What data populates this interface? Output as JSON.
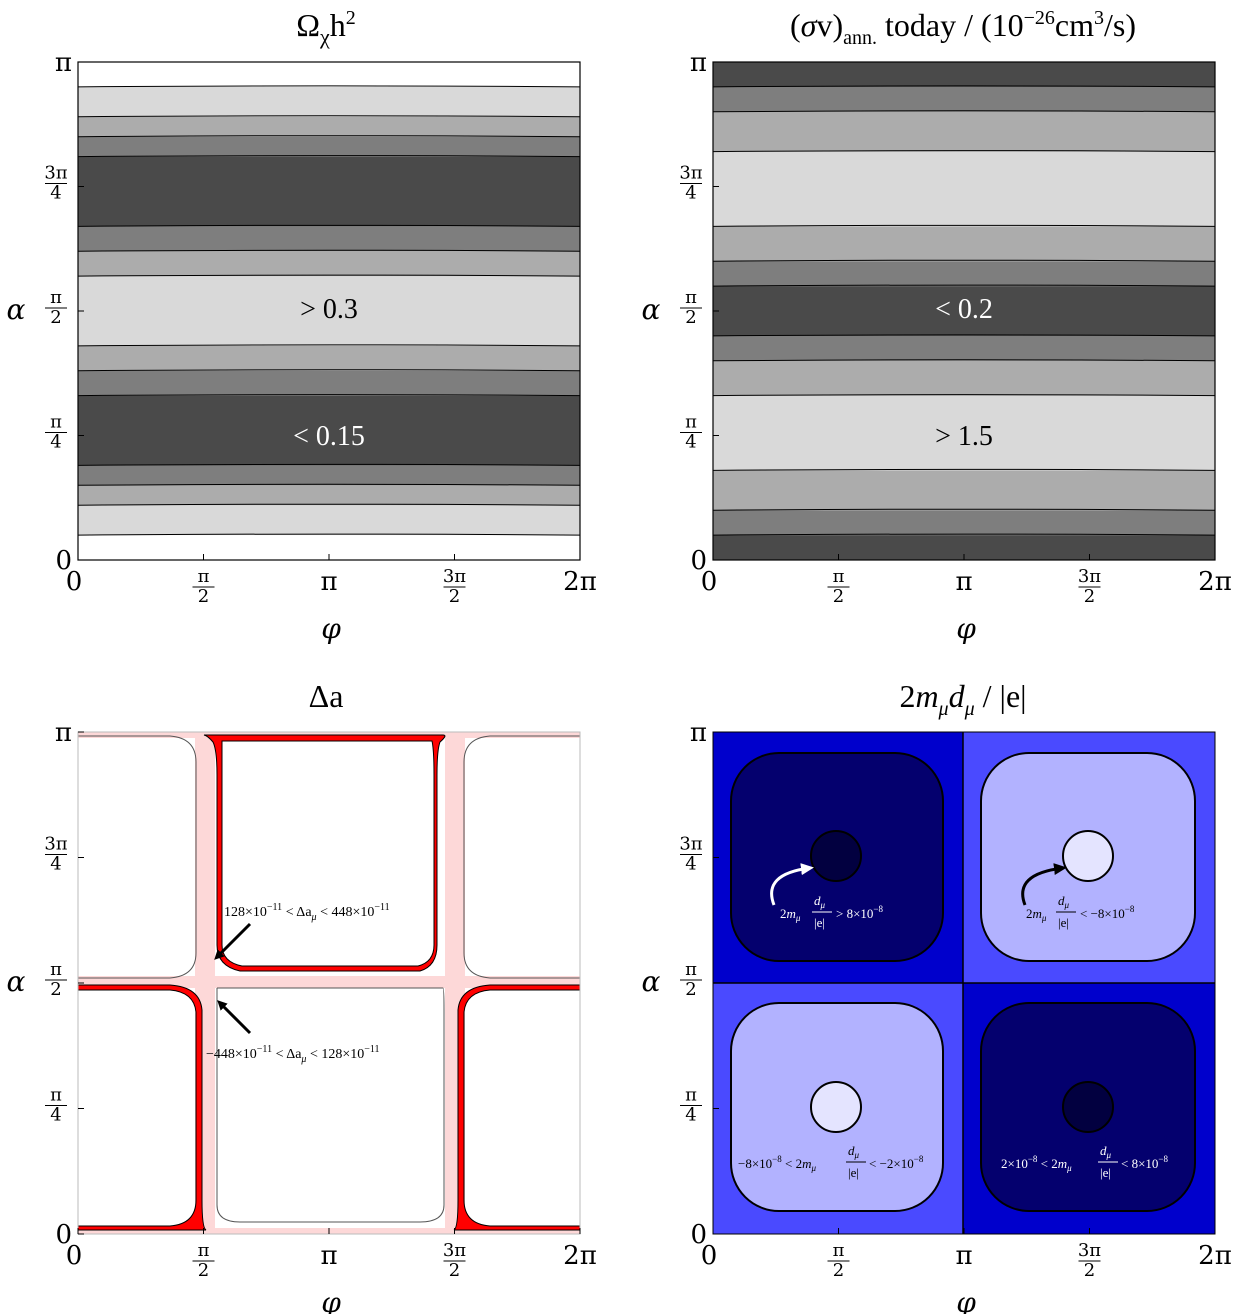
{
  "axes": {
    "alpha_label": "α",
    "phi_label": "φ",
    "alpha_ticks": [
      "0",
      "π/4",
      "π/2",
      "3π/4",
      "π"
    ],
    "phi_ticks": [
      "0",
      "π/2",
      "π",
      "3π/2",
      "2π"
    ]
  },
  "colors": {
    "gray_dark": "#4a4a4a",
    "gray_mid": "#7e7e7e",
    "gray_light": "#acacac",
    "gray_lighter": "#d9d9d9",
    "red": "#ff0000",
    "pink": "#fdd8d8",
    "blue_deep": "#0000cc",
    "blue_mid": "#4a4aff",
    "blue_navy": "#04006e",
    "blue_pale": "#b2b2ff",
    "blue_paler": "#e4e4ff",
    "blue_darkest": "#020040"
  },
  "chart_data": [
    {
      "type": "contour",
      "title": "Ω_χ h²",
      "xlabel": "φ",
      "ylabel": "α",
      "xlim": [
        "0",
        "2π"
      ],
      "ylim": [
        "0",
        "π"
      ],
      "bands_alpha_fraction_of_pi": [
        {
          "from": 0.0,
          "to": 0.05,
          "shade": "white"
        },
        {
          "from": 0.05,
          "to": 0.11,
          "shade": "lighter"
        },
        {
          "from": 0.11,
          "to": 0.15,
          "shade": "light"
        },
        {
          "from": 0.15,
          "to": 0.19,
          "shade": "mid"
        },
        {
          "from": 0.19,
          "to": 0.33,
          "shade": "dark"
        },
        {
          "from": 0.33,
          "to": 0.38,
          "shade": "mid"
        },
        {
          "from": 0.38,
          "to": 0.43,
          "shade": "light"
        },
        {
          "from": 0.43,
          "to": 0.57,
          "shade": "lighter"
        },
        {
          "from": 0.57,
          "to": 0.62,
          "shade": "light"
        },
        {
          "from": 0.62,
          "to": 0.67,
          "shade": "mid"
        },
        {
          "from": 0.67,
          "to": 0.81,
          "shade": "dark"
        },
        {
          "from": 0.81,
          "to": 0.85,
          "shade": "mid"
        },
        {
          "from": 0.85,
          "to": 0.89,
          "shade": "light"
        },
        {
          "from": 0.89,
          "to": 0.95,
          "shade": "lighter"
        },
        {
          "from": 0.95,
          "to": 1.0,
          "shade": "white"
        }
      ],
      "annotations": [
        {
          "text": "> 0.3",
          "phi_frac_of_2pi": 0.5,
          "alpha_frac_of_pi": 0.5
        },
        {
          "text": "< 0.15",
          "phi_frac_of_2pi": 0.5,
          "alpha_frac_of_pi": 0.25
        }
      ]
    },
    {
      "type": "contour",
      "title_parts": {
        "open": "(",
        "sigma": "σ",
        "v": "v)",
        "sub": "ann.",
        "mid": " today / (10",
        "exp": "−26",
        "cm": "cm",
        "cm_exp": "3",
        "tail": "/s)"
      },
      "xlabel": "φ",
      "ylabel": "α",
      "xlim": [
        "0",
        "2π"
      ],
      "ylim": [
        "0",
        "π"
      ],
      "bands_alpha_fraction_of_pi": [
        {
          "from": 0.0,
          "to": 0.05,
          "shade": "dark"
        },
        {
          "from": 0.05,
          "to": 0.1,
          "shade": "mid"
        },
        {
          "from": 0.1,
          "to": 0.18,
          "shade": "light"
        },
        {
          "from": 0.18,
          "to": 0.33,
          "shade": "lighter"
        },
        {
          "from": 0.33,
          "to": 0.4,
          "shade": "light"
        },
        {
          "from": 0.4,
          "to": 0.45,
          "shade": "mid"
        },
        {
          "from": 0.45,
          "to": 0.55,
          "shade": "dark"
        },
        {
          "from": 0.55,
          "to": 0.6,
          "shade": "mid"
        },
        {
          "from": 0.6,
          "to": 0.67,
          "shade": "light"
        },
        {
          "from": 0.67,
          "to": 0.82,
          "shade": "lighter"
        },
        {
          "from": 0.82,
          "to": 0.9,
          "shade": "light"
        },
        {
          "from": 0.9,
          "to": 0.95,
          "shade": "mid"
        },
        {
          "from": 0.95,
          "to": 1.0,
          "shade": "dark"
        }
      ],
      "annotations": [
        {
          "text": "< 0.2",
          "phi_frac_of_2pi": 0.5,
          "alpha_frac_of_pi": 0.5
        },
        {
          "text": "> 1.5",
          "phi_frac_of_2pi": 0.5,
          "alpha_frac_of_pi": 0.25
        }
      ]
    },
    {
      "type": "contour",
      "title": "Δa",
      "xlabel": "φ",
      "ylabel": "α",
      "xlim": [
        "0",
        "2π"
      ],
      "ylim": [
        "0",
        "π"
      ],
      "regions": [
        {
          "name": "128×10⁻¹¹ < Δa_μ < 448×10⁻¹¹",
          "color": "red"
        },
        {
          "name": "−448×10⁻¹¹ < Δa_μ < 128×10⁻¹¹",
          "color": "red"
        }
      ],
      "annotations": [
        {
          "label_main": "128×10",
          "label_exp": "−11",
          "label_mid": " < Δa",
          "label_sub": "μ",
          "label_rel": " < 448×10",
          "label_exp2": "−11"
        },
        {
          "label_main": "−448×10",
          "label_exp": "−11",
          "label_mid": " < Δa",
          "label_sub": "μ",
          "label_rel": " < 128×10",
          "label_exp2": "−11"
        }
      ]
    },
    {
      "type": "contour",
      "title_parts": {
        "lead": "2",
        "m": "m",
        "msub": "μ",
        "d": "d",
        "dsub": "μ",
        "tail": " / |e|"
      },
      "xlabel": "φ",
      "ylabel": "α",
      "xlim": [
        "0",
        "2π"
      ],
      "ylim": [
        "0",
        "π"
      ],
      "quadrants": [
        {
          "phi": "0–π",
          "alpha": "π/2–π",
          "sign": "positive"
        },
        {
          "phi": "π–2π",
          "alpha": "π/2–π",
          "sign": "negative"
        },
        {
          "phi": "0–π",
          "alpha": "0–π/2",
          "sign": "negative"
        },
        {
          "phi": "π–2π",
          "alpha": "0–π/2",
          "sign": "positive"
        }
      ],
      "annotations": [
        {
          "rel": "> 8×10",
          "exp": "−8"
        },
        {
          "rel": "< −8×10",
          "exp": "−8"
        },
        {
          "pre": "−8×10",
          "pre_exp": "−8",
          "pre_rel": " < ",
          "rel": " < −2×10",
          "exp": "−8"
        },
        {
          "pre": "2×10",
          "pre_exp": "−8",
          "pre_rel": " < ",
          "rel": " < 8×10",
          "exp": "−8"
        }
      ],
      "formula": {
        "two": "2",
        "m": "m",
        "mu": "μ",
        "d": "d",
        "e": "|e|"
      }
    }
  ]
}
